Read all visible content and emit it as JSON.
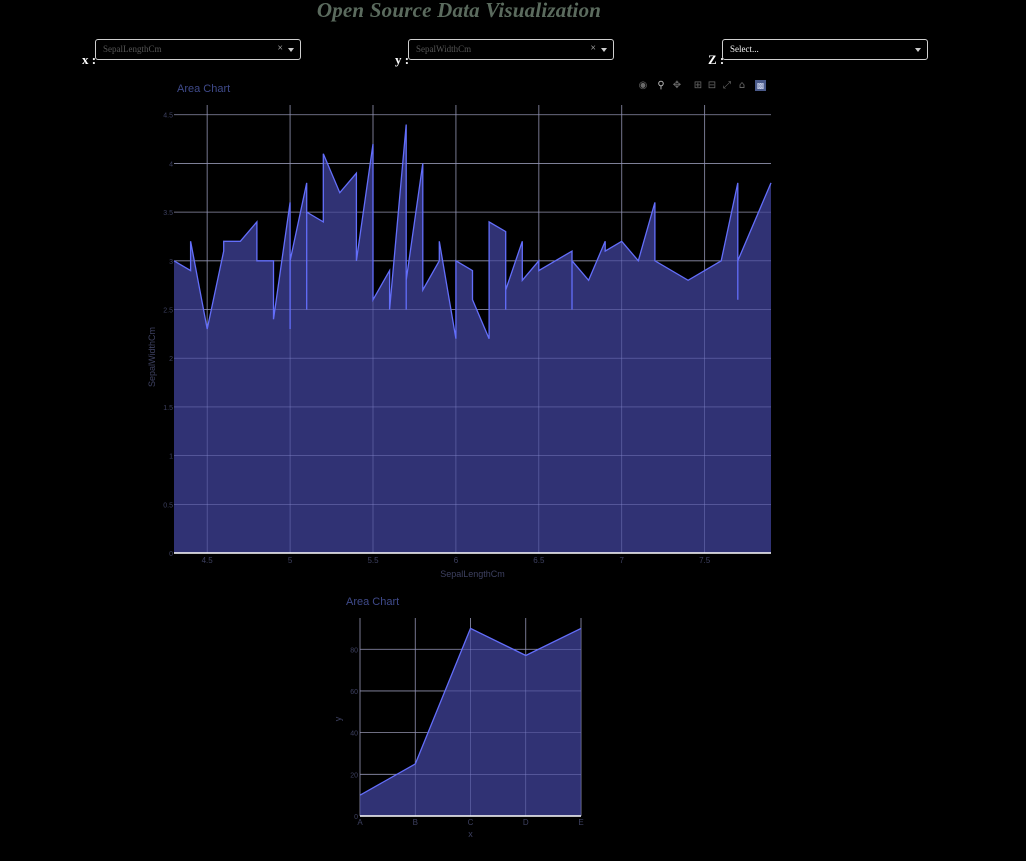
{
  "page": {
    "title": "Open Source Data Visualization"
  },
  "controls": {
    "x": {
      "label": "x :",
      "value": "SepalLengthCm",
      "clear": "×"
    },
    "y": {
      "label": "y :",
      "value": "SepalWidthCm",
      "clear": "×"
    },
    "z": {
      "label": "Z :",
      "placeholder": "Select..."
    }
  },
  "modebar": {
    "icons": [
      "camera-icon",
      "zoom-icon",
      "pan-icon",
      "zoom-in-icon",
      "zoom-out-icon",
      "autoscale-icon",
      "reset-axes-icon",
      "plotly-logo-icon"
    ]
  },
  "colors": {
    "fill": "#33357a",
    "line": "#636efa",
    "grid": "#8a8a8a",
    "tick": "#3d4060",
    "title": "#3f4a8a",
    "background": "#000000"
  },
  "chart_data": [
    {
      "type": "area",
      "title": "Area Chart",
      "xlabel": "SepalLengthCm",
      "ylabel": "SepalWidthCm",
      "xlim": [
        4.3,
        7.9
      ],
      "ylim": [
        0,
        4.6
      ],
      "xticks": [
        4.5,
        5,
        5.5,
        6,
        6.5,
        7,
        7.5
      ],
      "yticks": [
        0,
        0.5,
        1,
        1.5,
        2,
        2.5,
        3,
        3.5,
        4,
        4.5
      ],
      "grid": true,
      "x": [
        4.3,
        4.4,
        4.4,
        4.5,
        4.6,
        4.6,
        4.7,
        4.8,
        4.8,
        4.9,
        4.9,
        5.0,
        5.0,
        5.0,
        5.1,
        5.1,
        5.1,
        5.2,
        5.2,
        5.3,
        5.4,
        5.4,
        5.5,
        5.5,
        5.6,
        5.6,
        5.7,
        5.7,
        5.7,
        5.8,
        5.8,
        5.9,
        5.9,
        6.0,
        6.0,
        6.1,
        6.1,
        6.2,
        6.2,
        6.3,
        6.3,
        6.3,
        6.4,
        6.4,
        6.5,
        6.5,
        6.6,
        6.7,
        6.7,
        6.7,
        6.8,
        6.9,
        6.9,
        7.0,
        7.1,
        7.2,
        7.2,
        7.4,
        7.6,
        7.7,
        7.7,
        7.7,
        7.9
      ],
      "y": [
        3.0,
        2.9,
        3.2,
        2.3,
        3.1,
        3.2,
        3.2,
        3.4,
        3.0,
        3.0,
        2.4,
        3.6,
        2.3,
        3.0,
        3.8,
        2.5,
        3.5,
        3.4,
        4.1,
        3.7,
        3.9,
        3.0,
        4.2,
        2.6,
        2.9,
        2.5,
        4.4,
        2.5,
        2.8,
        4.0,
        2.7,
        3.0,
        3.2,
        2.2,
        3.0,
        2.9,
        2.6,
        2.2,
        3.4,
        3.3,
        2.5,
        2.7,
        3.2,
        2.8,
        3.0,
        2.9,
        3.0,
        3.1,
        2.5,
        3.0,
        2.8,
        3.2,
        3.1,
        3.2,
        3.0,
        3.6,
        3.0,
        2.8,
        3.0,
        3.8,
        2.6,
        3.0,
        3.8
      ]
    },
    {
      "type": "area",
      "title": "Area Chart",
      "xlabel": "x",
      "ylabel": "y",
      "categories": [
        "A",
        "B",
        "C",
        "D",
        "E"
      ],
      "values": [
        10,
        25,
        90,
        77,
        90
      ],
      "ylim": [
        0,
        95
      ],
      "yticks": [
        0,
        20,
        40,
        60,
        80
      ],
      "grid": true
    }
  ]
}
